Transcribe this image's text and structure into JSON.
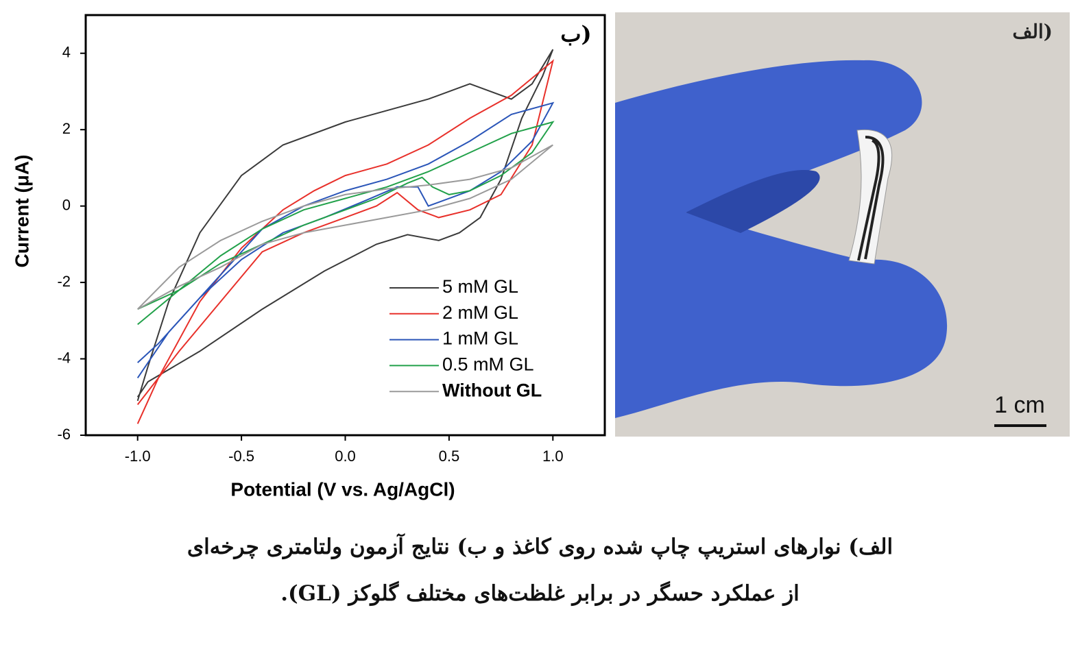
{
  "chart_data": {
    "type": "line",
    "panel_label": "ب)",
    "x_label": "Potential (V vs. Ag/AgCl)",
    "y_label": "Current (μA)",
    "xlim": [
      -1.25,
      1.25
    ],
    "ylim": [
      -6,
      5
    ],
    "xticks": [
      {
        "value": -1,
        "label": "-1.0"
      },
      {
        "value": -0.5,
        "label": "-0.5"
      },
      {
        "value": 0,
        "label": "0.0"
      },
      {
        "value": 0.5,
        "label": "0.5"
      },
      {
        "value": 1,
        "label": "1.0"
      }
    ],
    "yticks": [
      -6,
      -4,
      -2,
      0,
      2,
      4
    ],
    "series": [
      {
        "name": "5 mM GL",
        "color": "#3a3a3a",
        "x": [
          -1,
          -0.95,
          -0.7,
          -0.4,
          -0.1,
          0.15,
          0.3,
          0.45,
          0.55,
          0.65,
          0.75,
          0.85,
          0.95,
          1,
          0.9,
          0.8,
          0.6,
          0.4,
          0.2,
          0,
          -0.3,
          -0.5,
          -0.7,
          -0.85,
          -0.95,
          -1
        ],
        "values": [
          -5,
          -4.6,
          -3.8,
          -2.7,
          -1.7,
          -1,
          -0.75,
          -0.9,
          -0.7,
          -0.3,
          0.7,
          2.3,
          3.4,
          4.1,
          3.2,
          2.8,
          3.2,
          2.8,
          2.5,
          2.2,
          1.6,
          0.8,
          -0.7,
          -2.5,
          -4.2,
          -5.1
        ]
      },
      {
        "name": "2 mM GL",
        "color": "#e8302a",
        "x": [
          -1,
          -0.9,
          -0.7,
          -0.5,
          -0.3,
          -0.15,
          0,
          0.2,
          0.4,
          0.6,
          0.8,
          1,
          0.9,
          0.75,
          0.6,
          0.45,
          0.35,
          0.25,
          0.15,
          0,
          -0.2,
          -0.4,
          -0.6,
          -0.8,
          -1
        ],
        "values": [
          -5.7,
          -4.5,
          -2.5,
          -1.1,
          -0.1,
          0.4,
          0.8,
          1.1,
          1.6,
          2.3,
          2.9,
          3.8,
          1.6,
          0.3,
          -0.1,
          -0.3,
          -0.1,
          0.35,
          0,
          -0.3,
          -0.7,
          -1.2,
          -2.5,
          -3.8,
          -5.2
        ]
      },
      {
        "name": "1 mM GL",
        "color": "#2a55b8",
        "x": [
          -1,
          -0.85,
          -0.6,
          -0.4,
          -0.2,
          0,
          0.2,
          0.4,
          0.6,
          0.8,
          1,
          0.9,
          0.75,
          0.6,
          0.45,
          0.4,
          0.35,
          0.25,
          0.1,
          -0.1,
          -0.3,
          -0.5,
          -0.7,
          -0.9,
          -1
        ],
        "values": [
          -4.5,
          -3.3,
          -1.8,
          -0.6,
          0,
          0.4,
          0.7,
          1.1,
          1.7,
          2.4,
          2.7,
          1.7,
          0.9,
          0.4,
          0.1,
          0,
          0.5,
          0.5,
          0.15,
          -0.3,
          -0.7,
          -1.4,
          -2.4,
          -3.6,
          -4.1
        ]
      },
      {
        "name": "0.5 mM GL",
        "color": "#22a14a",
        "x": [
          -1,
          -0.8,
          -0.6,
          -0.4,
          -0.2,
          0,
          0.2,
          0.4,
          0.6,
          0.8,
          1,
          0.9,
          0.75,
          0.6,
          0.5,
          0.42,
          0.37,
          0.3,
          0.15,
          0,
          -0.2,
          -0.4,
          -0.6,
          -0.8,
          -1
        ],
        "values": [
          -3.1,
          -2.2,
          -1.3,
          -0.6,
          -0.1,
          0.2,
          0.5,
          0.9,
          1.4,
          1.9,
          2.2,
          1.4,
          0.8,
          0.4,
          0.3,
          0.5,
          0.75,
          0.6,
          0.2,
          -0.1,
          -0.5,
          -1,
          -1.5,
          -2.2,
          -2.7
        ]
      },
      {
        "name": "Without GL",
        "color": "#9a9a9a",
        "x": [
          -1,
          -0.8,
          -0.6,
          -0.4,
          -0.2,
          0,
          0.2,
          0.4,
          0.6,
          0.8,
          1,
          0.8,
          0.6,
          0.4,
          0.2,
          0,
          -0.2,
          -0.4,
          -0.6,
          -0.8,
          -1
        ],
        "values": [
          -2.7,
          -1.6,
          -0.9,
          -0.4,
          0,
          0.3,
          0.45,
          0.55,
          0.7,
          1,
          1.6,
          0.7,
          0.2,
          -0.1,
          -0.3,
          -0.5,
          -0.7,
          -1,
          -1.6,
          -2.1,
          -2.7
        ]
      }
    ]
  },
  "photo": {
    "label": "الف)",
    "scale_bar": "1 cm"
  },
  "caption": {
    "line1": "الف) نوارهای استریپ چاپ شده روی کاغذ و ب) نتایج آزمون ولتامتری چرخه‌ای",
    "line2": "از عملکرد حسگر در برابر غلظت‌های مختلف گلوکز (GL)."
  }
}
